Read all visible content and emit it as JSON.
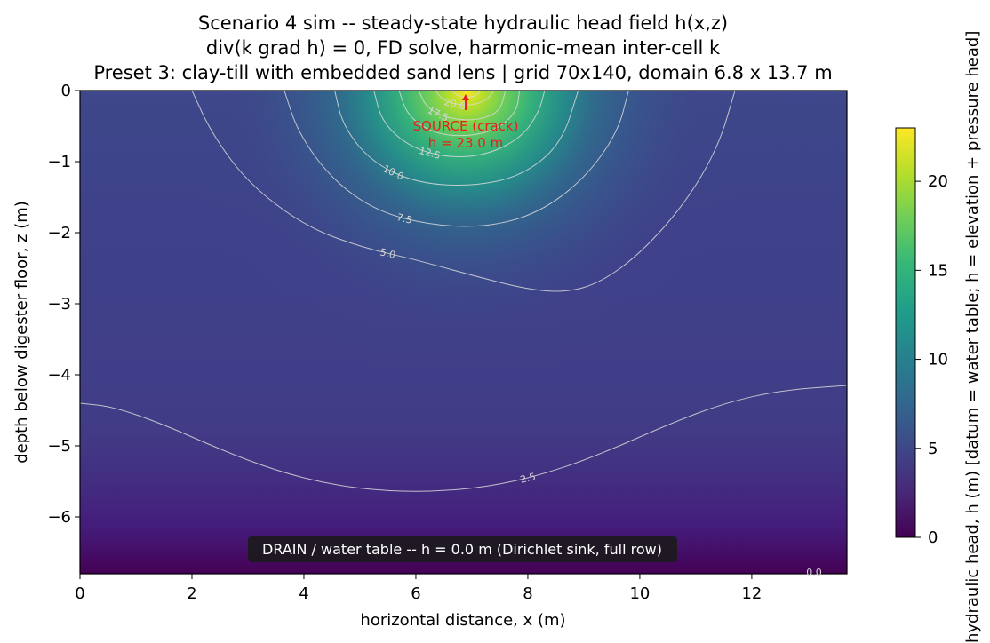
{
  "chart_data": {
    "type": "heatmap",
    "title_lines": [
      "Scenario 4 sim -- steady-state hydraulic head field h(x,z)",
      "div(k grad h) = 0, FD solve, harmonic-mean inter-cell k",
      "Preset 3: clay-till with embedded sand lens  |  grid 70x140, domain 6.8 x 13.7 m"
    ],
    "xlabel": "horizontal distance, x (m)",
    "ylabel": "depth below digester floor, z (m)",
    "xlim": [
      0,
      13.7
    ],
    "ylim": [
      -6.8,
      0
    ],
    "xticks": [
      0,
      2,
      4,
      6,
      8,
      10,
      12
    ],
    "yticks": [
      0,
      -1,
      -2,
      -3,
      -4,
      -5,
      -6
    ],
    "xtick_labels": [
      "0",
      "2",
      "4",
      "6",
      "8",
      "10",
      "12"
    ],
    "ytick_labels": [
      "0",
      "−1",
      "−2",
      "−3",
      "−4",
      "−5",
      "−6"
    ],
    "colorbar": {
      "label": "hydraulic head, h (m)  [datum = water table; h = elevation + pressure head]",
      "ticks": [
        0,
        5,
        10,
        15,
        20
      ],
      "tick_labels": [
        "0",
        "5",
        "10",
        "15",
        "20"
      ],
      "range": [
        0,
        23
      ],
      "colormap": "viridis"
    },
    "source": {
      "x": 6.9,
      "z": 0,
      "head": 23.0
    },
    "contours": [
      {
        "level": 2.5,
        "label": "2.5",
        "points": [
          [
            0,
            -4.4
          ],
          [
            0.6,
            -4.45
          ],
          [
            1.5,
            -4.7
          ],
          [
            2.5,
            -5.05
          ],
          [
            3.5,
            -5.35
          ],
          [
            4.5,
            -5.55
          ],
          [
            5.5,
            -5.64
          ],
          [
            6.5,
            -5.64
          ],
          [
            7.5,
            -5.55
          ],
          [
            8.5,
            -5.35
          ],
          [
            9.5,
            -5.05
          ],
          [
            10.5,
            -4.7
          ],
          [
            11.5,
            -4.4
          ],
          [
            12.5,
            -4.22
          ],
          [
            13.7,
            -4.15
          ]
        ]
      },
      {
        "level": 5.0,
        "label": "5.0",
        "points": [
          [
            2,
            0
          ],
          [
            2.35,
            -0.6
          ],
          [
            3,
            -1.3
          ],
          [
            4,
            -1.9
          ],
          [
            5,
            -2.2
          ],
          [
            6,
            -2.38
          ],
          [
            7,
            -2.6
          ],
          [
            8,
            -2.8
          ],
          [
            8.7,
            -2.84
          ],
          [
            9.3,
            -2.7
          ],
          [
            10,
            -2.3
          ],
          [
            10.8,
            -1.6
          ],
          [
            11.4,
            -0.8
          ],
          [
            11.7,
            0
          ]
        ]
      },
      {
        "level": 7.5,
        "label": "7.5",
        "points": [
          [
            3.65,
            0
          ],
          [
            3.9,
            -0.6
          ],
          [
            4.5,
            -1.25
          ],
          [
            5.3,
            -1.7
          ],
          [
            6.3,
            -1.9
          ],
          [
            7.3,
            -1.92
          ],
          [
            8.2,
            -1.72
          ],
          [
            9.0,
            -1.25
          ],
          [
            9.6,
            -0.6
          ],
          [
            9.8,
            0
          ]
        ]
      },
      {
        "level": 10.0,
        "label": "10.0",
        "points": [
          [
            4.55,
            0
          ],
          [
            4.7,
            -0.5
          ],
          [
            5.2,
            -1.0
          ],
          [
            6.0,
            -1.3
          ],
          [
            7.0,
            -1.35
          ],
          [
            7.9,
            -1.2
          ],
          [
            8.6,
            -0.75
          ],
          [
            8.9,
            0
          ]
        ]
      },
      {
        "level": 12.5,
        "label": "12.5",
        "points": [
          [
            5.25,
            0
          ],
          [
            5.4,
            -0.45
          ],
          [
            5.9,
            -0.8
          ],
          [
            6.6,
            -0.95
          ],
          [
            7.3,
            -0.9
          ],
          [
            7.9,
            -0.65
          ],
          [
            8.2,
            -0.3
          ],
          [
            8.3,
            0
          ]
        ]
      },
      {
        "level": 15.0,
        "label": "",
        "points": [
          [
            5.7,
            0
          ],
          [
            5.85,
            -0.35
          ],
          [
            6.3,
            -0.6
          ],
          [
            6.9,
            -0.65
          ],
          [
            7.45,
            -0.55
          ],
          [
            7.8,
            -0.3
          ],
          [
            7.85,
            0
          ]
        ]
      },
      {
        "level": 17.5,
        "label": "17.5",
        "points": [
          [
            6.05,
            0
          ],
          [
            6.2,
            -0.25
          ],
          [
            6.6,
            -0.4
          ],
          [
            7.1,
            -0.42
          ],
          [
            7.5,
            -0.3
          ],
          [
            7.6,
            0
          ]
        ]
      },
      {
        "level": 20.0,
        "label": "20.0",
        "points": [
          [
            6.35,
            0
          ],
          [
            6.5,
            -0.15
          ],
          [
            6.9,
            -0.22
          ],
          [
            7.25,
            -0.15
          ],
          [
            7.4,
            0
          ]
        ]
      },
      {
        "level": 22.5,
        "label": "",
        "points": [
          [
            6.65,
            0
          ],
          [
            6.75,
            -0.08
          ],
          [
            6.95,
            -0.1
          ],
          [
            7.1,
            -0.06
          ],
          [
            7.15,
            0
          ]
        ]
      }
    ],
    "bottom_contour_label": "0.0"
  },
  "annotations": {
    "source_line1": "SOURCE (crack)",
    "source_line2": "h = 23.0 m",
    "drain": "DRAIN / water table -- h = 0.0 m  (Dirichlet sink, full row)"
  },
  "colors": {
    "contour_line": "#d9d9d9",
    "annotation": "#e8201a",
    "drain_box": "#1a1a1a"
  }
}
